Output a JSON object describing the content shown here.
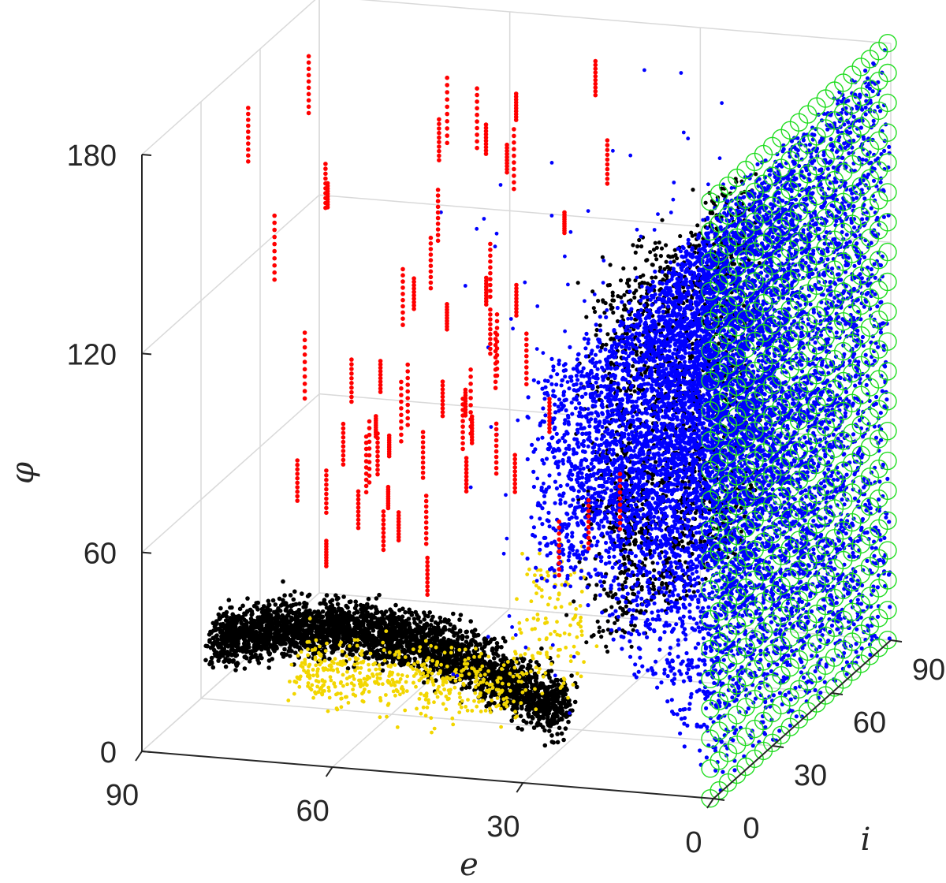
{
  "chart_data": {
    "type": "scatter",
    "dimensions": 3,
    "xlabel": "e",
    "ylabel": "i",
    "zlabel": "φ",
    "xlim": [
      0,
      90
    ],
    "ylim": [
      0,
      90
    ],
    "zlim": [
      0,
      180
    ],
    "x_ticks": [
      "0",
      "30",
      "60",
      "90"
    ],
    "y_ticks": [
      "0",
      "30",
      "60",
      "90"
    ],
    "z_ticks": [
      "0",
      "60",
      "120",
      "180"
    ],
    "grid": true,
    "colors": {
      "series_blue": "#0000ff",
      "series_black": "#000000",
      "series_yellow": "#f2d600",
      "series_red": "#ff0000",
      "series_green": "#22dd22",
      "axis": "#262626",
      "grid": "#d9d9d9"
    },
    "series": [
      {
        "color": "#0000ff",
        "marker": "dot",
        "description_points": [
          {
            "e": 5,
            "i_range": [
              0,
              90
            ],
            "phi_range": [
              0,
              180
            ]
          },
          {
            "e": 15,
            "i_range": [
              0,
              90
            ],
            "phi_range": [
              10,
              180
            ]
          },
          {
            "e": 25,
            "i_range": [
              0,
              90
            ],
            "phi_range": [
              40,
              160
            ]
          }
        ]
      },
      {
        "color": "#000000",
        "marker": "dot",
        "description_points": [
          {
            "e": 75,
            "i_range": [
              0,
              30
            ],
            "phi_range": [
              15,
              45
            ]
          },
          {
            "e": 55,
            "i_range": [
              0,
              20
            ],
            "phi_range": [
              5,
              35
            ]
          },
          {
            "e": 35,
            "i_range": [
              0,
              20
            ],
            "phi_range": [
              0,
              30
            ]
          },
          {
            "e": 25,
            "i_range": [
              0,
              60
            ],
            "phi_range": [
              30,
              130
            ]
          }
        ]
      },
      {
        "color": "#f2d600",
        "marker": "dot",
        "description_points": [
          {
            "e": 40,
            "i_range": [
              0,
              20
            ],
            "phi_range": [
              10,
              40
            ]
          },
          {
            "e": 28,
            "i_range": [
              0,
              60
            ],
            "phi_range": [
              30,
              90
            ]
          }
        ]
      },
      {
        "color": "#ff0000",
        "marker": "dot",
        "description_points": [
          {
            "e": 70,
            "i_range": [
              10,
              80
            ],
            "phi_range": [
              40,
              170
            ]
          },
          {
            "e": 50,
            "i_range": [
              10,
              80
            ],
            "phi_range": [
              40,
              170
            ]
          }
        ]
      },
      {
        "color": "#22dd22",
        "marker": "circle",
        "description_points": [
          {
            "e": 0,
            "i_range": [
              0,
              90
            ],
            "phi_range": [
              0,
              180
            ]
          }
        ]
      }
    ]
  }
}
